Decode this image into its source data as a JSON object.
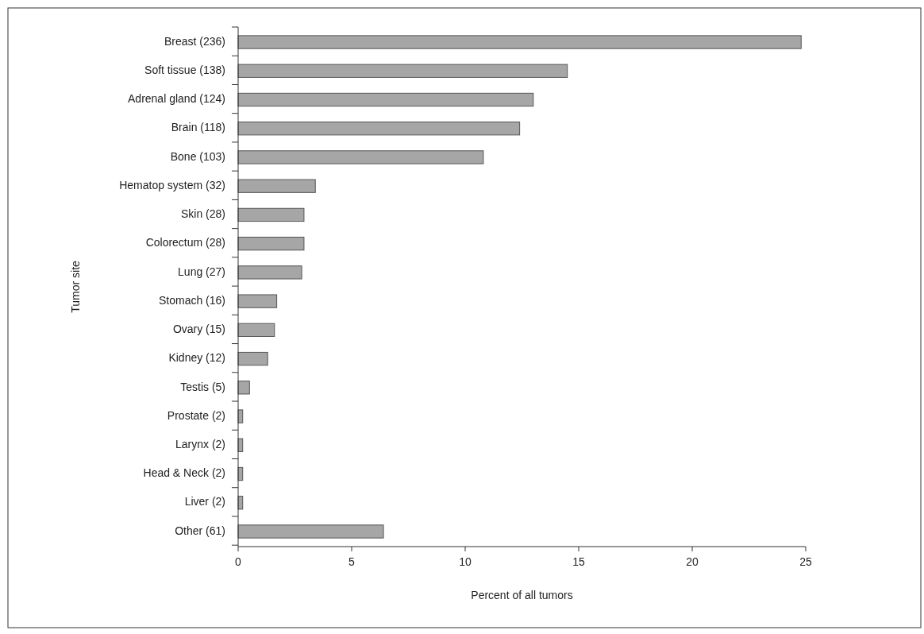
{
  "chart_data": {
    "type": "bar",
    "orientation": "horizontal",
    "xlabel": "Percent of all tumors",
    "ylabel": "Tumor site",
    "categories": [
      "Breast (236)",
      "Soft tissue (138)",
      "Adrenal gland (124)",
      "Brain (118)",
      "Bone (103)",
      "Hematop system (32)",
      "Skin (28)",
      "Colorectum (28)",
      "Lung (27)",
      "Stomach (16)",
      "Ovary (15)",
      "Kidney (12)",
      "Testis (5)",
      "Prostate (2)",
      "Larynx (2)",
      "Head & Neck (2)",
      "Liver (2)",
      "Other (61)"
    ],
    "values": [
      24.8,
      14.5,
      13.0,
      12.4,
      10.8,
      3.4,
      2.9,
      2.9,
      2.8,
      1.7,
      1.6,
      1.3,
      0.5,
      0.2,
      0.2,
      0.2,
      0.2,
      6.4
    ],
    "color": "#a6a6a6",
    "xlim": [
      0,
      25
    ],
    "xticks": [
      0,
      5,
      10,
      15,
      20,
      25
    ],
    "grid": false
  }
}
